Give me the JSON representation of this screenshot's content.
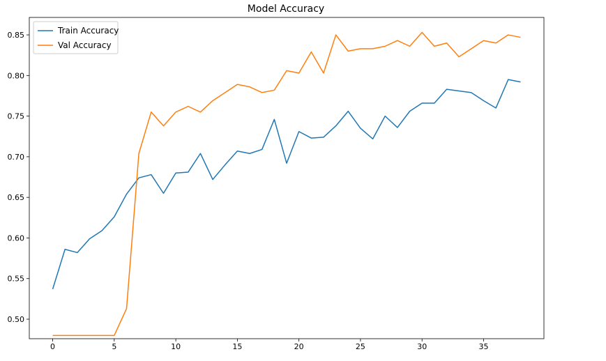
{
  "chart_data": {
    "type": "line",
    "title": "Model Accuracy",
    "xlabel": "",
    "ylabel": "",
    "xlim": [
      -1.9,
      39.9
    ],
    "ylim": [
      0.476,
      0.8715
    ],
    "x_ticks": [
      0,
      5,
      10,
      15,
      20,
      25,
      30,
      35
    ],
    "y_ticks": [
      0.5,
      0.55,
      0.6,
      0.65,
      0.7,
      0.75,
      0.8,
      0.85
    ],
    "legend_position": "top-left",
    "grid": false,
    "x": [
      0,
      1,
      2,
      3,
      4,
      5,
      6,
      7,
      8,
      9,
      10,
      11,
      12,
      13,
      14,
      15,
      16,
      17,
      18,
      19,
      20,
      21,
      22,
      23,
      24,
      25,
      26,
      27,
      28,
      29,
      30,
      31,
      32,
      33,
      34,
      35,
      36,
      37,
      38
    ],
    "series": [
      {
        "name": "Train Accuracy",
        "color": "#1f77b4",
        "values": [
          0.537,
          0.586,
          0.582,
          0.599,
          0.609,
          0.626,
          0.654,
          0.674,
          0.678,
          0.655,
          0.68,
          0.681,
          0.704,
          0.672,
          0.69,
          0.707,
          0.704,
          0.709,
          0.746,
          0.692,
          0.731,
          0.723,
          0.724,
          0.738,
          0.756,
          0.735,
          0.722,
          0.75,
          0.736,
          0.756,
          0.766,
          0.766,
          0.783,
          0.781,
          0.779,
          0.769,
          0.76,
          0.795,
          0.792
        ]
      },
      {
        "name": "Val Accuracy",
        "color": "#ff7f0e",
        "values": [
          0.48,
          0.48,
          0.48,
          0.48,
          0.48,
          0.48,
          0.513,
          0.704,
          0.755,
          0.738,
          0.755,
          0.762,
          0.755,
          0.769,
          0.779,
          0.789,
          0.786,
          0.779,
          0.782,
          0.806,
          0.803,
          0.829,
          0.803,
          0.85,
          0.83,
          0.833,
          0.833,
          0.836,
          0.843,
          0.836,
          0.853,
          0.836,
          0.84,
          0.823,
          0.833,
          0.843,
          0.84,
          0.85,
          0.847
        ]
      }
    ]
  }
}
